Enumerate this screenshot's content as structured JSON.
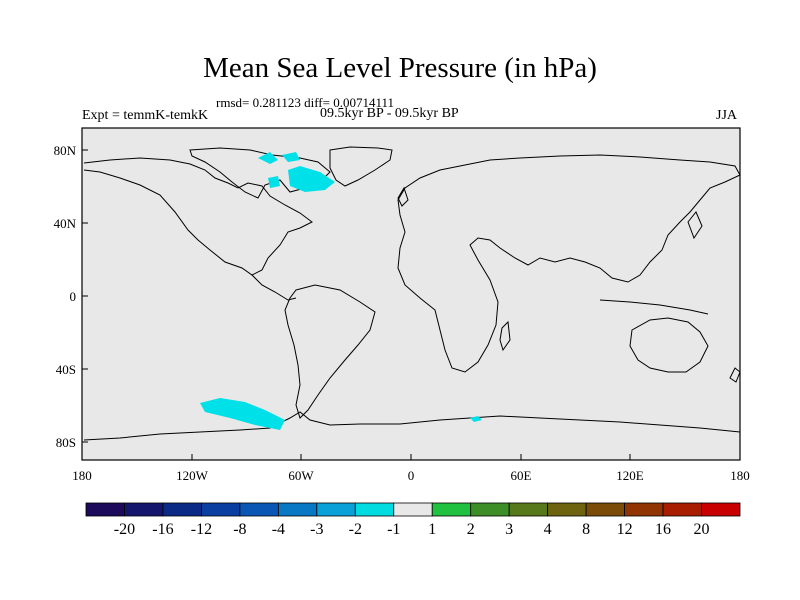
{
  "header": {
    "title": "Mean Sea Level Pressure (in hPa)",
    "stats": "rmsd= 0.281123 diff= 0.00714111",
    "expt": "Expt = temmK-temkK",
    "period": "09.5kyr BP - 09.5kyr BP",
    "season": "JJA"
  },
  "map": {
    "lat_ticks": [
      "80N",
      "40N",
      "0",
      "40S",
      "80S"
    ],
    "lon_ticks": [
      "180",
      "120W",
      "60W",
      "0",
      "60E",
      "120E",
      "180"
    ],
    "land_fill": "#e8e8e8",
    "anomaly_fill": "#00e0e8"
  },
  "colorbar": {
    "labels": [
      "-20",
      "-16",
      "-12",
      "-8",
      "-4",
      "-3",
      "-2",
      "-1",
      "1",
      "2",
      "3",
      "4",
      "8",
      "12",
      "16",
      "20"
    ],
    "colors": [
      "#1c0a5a",
      "#14166e",
      "#0a2a86",
      "#0a3ea0",
      "#0a56b4",
      "#0878c4",
      "#0aa0d8",
      "#00dce0",
      "#e8e8e8",
      "#20c040",
      "#3e8e28",
      "#58781c",
      "#6e6410",
      "#7a4c08",
      "#903404",
      "#a81c00",
      "#c80000"
    ]
  }
}
